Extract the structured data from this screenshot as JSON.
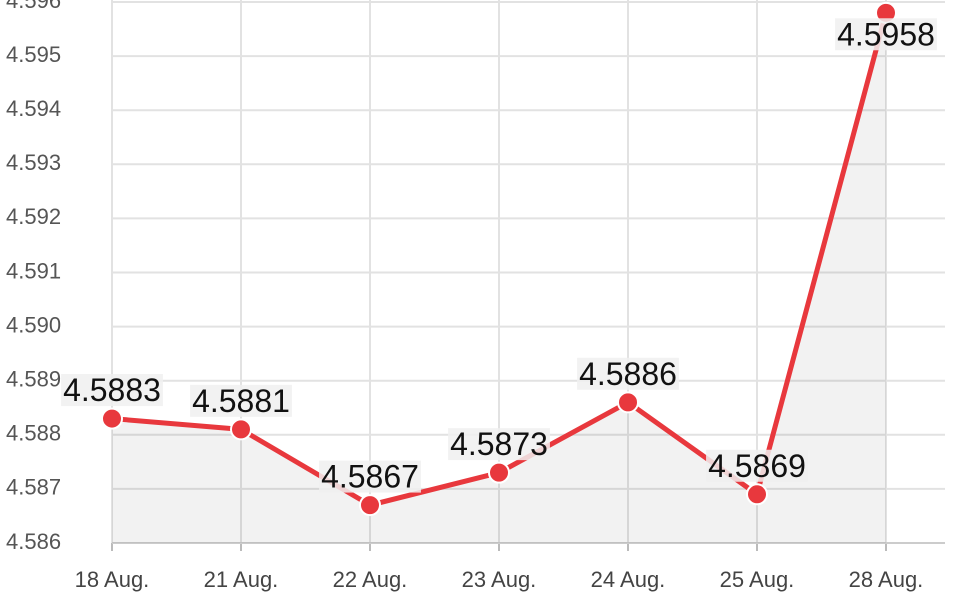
{
  "chart_data": {
    "type": "line",
    "categories": [
      "18 Aug.",
      "21 Aug.",
      "22 Aug.",
      "23 Aug.",
      "24 Aug.",
      "25 Aug.",
      "28 Aug."
    ],
    "series": [
      {
        "color": "#e8383d",
        "values": [
          4.5883,
          4.5881,
          4.5867,
          4.5873,
          4.5886,
          4.5869,
          4.5958
        ]
      }
    ],
    "ylim": [
      4.586,
      4.596
    ],
    "yticks": [
      4.586,
      4.587,
      4.588,
      4.589,
      {
        "value": 4.59,
        "label": "4.590"
      },
      4.591,
      4.592,
      4.593,
      4.594,
      4.595,
      4.596
    ],
    "grid": true,
    "data_labels": true
  }
}
